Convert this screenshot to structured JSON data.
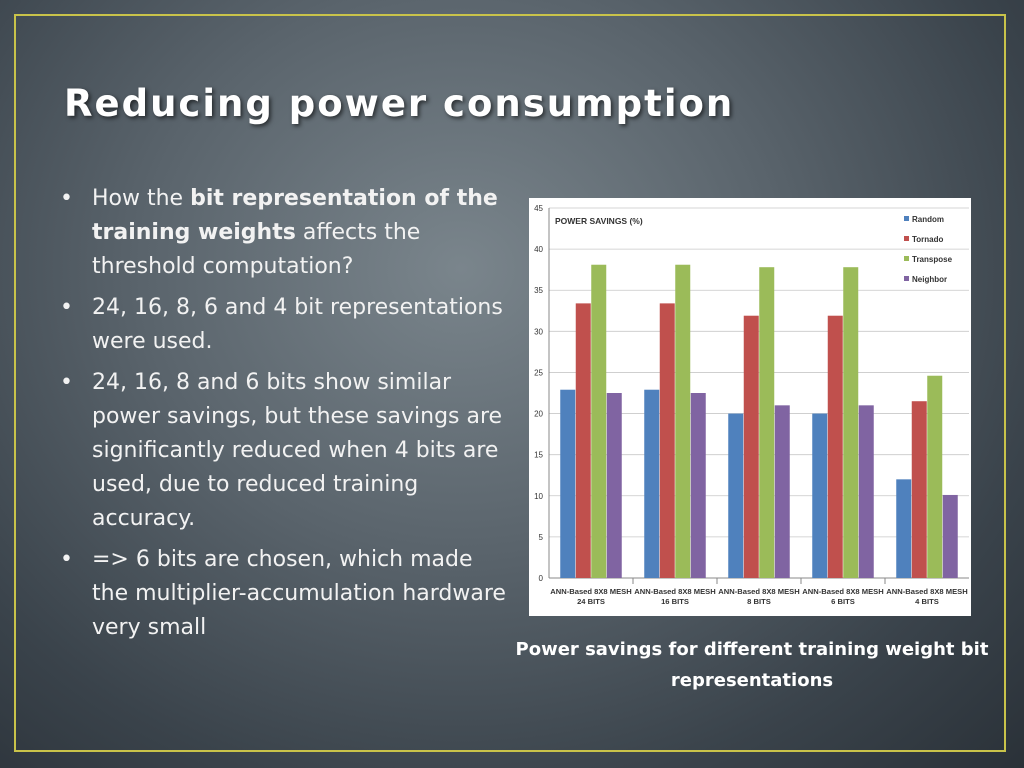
{
  "slide": {
    "title": "Reducing power consumption",
    "bullets": [
      {
        "pre": "How the ",
        "bold": "bit representation of the training weights",
        "post": " affects the threshold computation?"
      },
      {
        "text": "24, 16, 8, 6 and 4 bit representations were used."
      },
      {
        "text": "24, 16, 8 and 6 bits show similar power savings, but these savings are significantly reduced when 4 bits are used, due to reduced training accuracy."
      },
      {
        "text": "=> 6 bits are chosen, which made the multiplier-accumulation hardware very small"
      }
    ],
    "caption": "Power savings for different training weight bit representations",
    "colors": {
      "frame": "#c9c34a",
      "text": "#f2f2f2"
    }
  },
  "chart_data": {
    "type": "bar",
    "title": "POWER SAVINGS (%)",
    "categories": [
      [
        "ANN-Based 8X8 MESH",
        "24 BITS"
      ],
      [
        "ANN-Based 8X8 MESH",
        "16 BITS"
      ],
      [
        "ANN-Based 8X8 MESH",
        "8 BITS"
      ],
      [
        "ANN-Based 8X8 MESH",
        "6 BITS"
      ],
      [
        "ANN-Based 8X8 MESH",
        "4 BITS"
      ]
    ],
    "series": [
      {
        "name": "Random",
        "color": "#4f81bd",
        "values": [
          22.9,
          22.9,
          20.0,
          20.0,
          12.0
        ]
      },
      {
        "name": "Tornado",
        "color": "#c0504d",
        "values": [
          33.4,
          33.4,
          31.9,
          31.9,
          21.5
        ]
      },
      {
        "name": "Transpose",
        "color": "#9bbb59",
        "values": [
          38.1,
          38.1,
          37.8,
          37.8,
          24.6
        ]
      },
      {
        "name": "Neighbor",
        "color": "#8064a2",
        "values": [
          22.5,
          22.5,
          21.0,
          21.0,
          10.1
        ]
      }
    ],
    "ylim": [
      0,
      45
    ],
    "yticks": [
      0,
      5,
      10,
      15,
      20,
      25,
      30,
      35,
      40,
      45
    ],
    "grid": true,
    "legend": "top-right"
  }
}
